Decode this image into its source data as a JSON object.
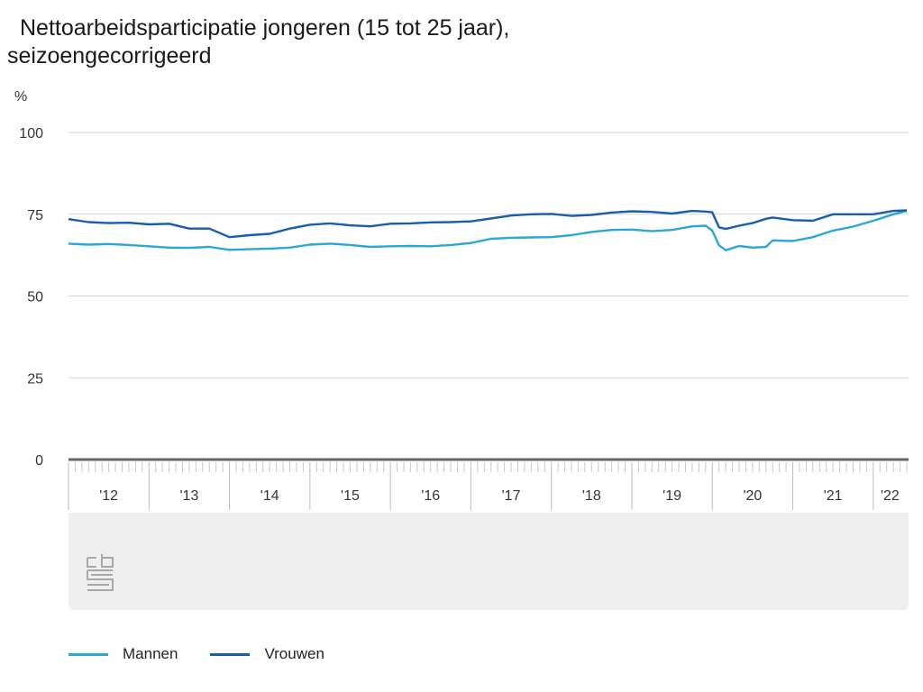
{
  "chart_data": {
    "type": "line",
    "title": "Nettoarbeidsparticipatie jongeren (15 tot 25 jaar), seizoengecorrigeerd",
    "ylabel": "%",
    "ylim": [
      0,
      100
    ],
    "yticks": [
      "0",
      "25",
      "50",
      "75",
      "100"
    ],
    "x_start": "2012-01",
    "x_end": "2022-06",
    "xticks": [
      "'12",
      "'13",
      "'14",
      "'15",
      "'16",
      "'17",
      "'18",
      "'19",
      "'20",
      "'21",
      "'22"
    ],
    "grid": true,
    "legend_position": "bottom-left",
    "series": [
      {
        "name": "Mannen",
        "color": "#29a8d6",
        "values": [
          {
            "x": "2012-01",
            "y": 66.0
          },
          {
            "x": "2012-04",
            "y": 65.7
          },
          {
            "x": "2012-07",
            "y": 65.9
          },
          {
            "x": "2012-10",
            "y": 65.6
          },
          {
            "x": "2013-01",
            "y": 65.2
          },
          {
            "x": "2013-04",
            "y": 64.8
          },
          {
            "x": "2013-07",
            "y": 64.7
          },
          {
            "x": "2013-10",
            "y": 65.0
          },
          {
            "x": "2014-01",
            "y": 64.1
          },
          {
            "x": "2014-04",
            "y": 64.3
          },
          {
            "x": "2014-07",
            "y": 64.5
          },
          {
            "x": "2014-10",
            "y": 64.8
          },
          {
            "x": "2015-01",
            "y": 65.7
          },
          {
            "x": "2015-04",
            "y": 66.0
          },
          {
            "x": "2015-07",
            "y": 65.6
          },
          {
            "x": "2015-10",
            "y": 65.0
          },
          {
            "x": "2016-01",
            "y": 65.2
          },
          {
            "x": "2016-04",
            "y": 65.3
          },
          {
            "x": "2016-07",
            "y": 65.2
          },
          {
            "x": "2016-10",
            "y": 65.6
          },
          {
            "x": "2017-01",
            "y": 66.2
          },
          {
            "x": "2017-04",
            "y": 67.5
          },
          {
            "x": "2017-07",
            "y": 67.8
          },
          {
            "x": "2017-10",
            "y": 67.9
          },
          {
            "x": "2018-01",
            "y": 68.0
          },
          {
            "x": "2018-04",
            "y": 68.6
          },
          {
            "x": "2018-07",
            "y": 69.6
          },
          {
            "x": "2018-10",
            "y": 70.2
          },
          {
            "x": "2019-01",
            "y": 70.3
          },
          {
            "x": "2019-04",
            "y": 69.8
          },
          {
            "x": "2019-07",
            "y": 70.2
          },
          {
            "x": "2019-10",
            "y": 71.3
          },
          {
            "x": "2019-12",
            "y": 71.5
          },
          {
            "x": "2020-01",
            "y": 70.0
          },
          {
            "x": "2020-02",
            "y": 65.5
          },
          {
            "x": "2020-03",
            "y": 64.0
          },
          {
            "x": "2020-05",
            "y": 65.3
          },
          {
            "x": "2020-07",
            "y": 64.8
          },
          {
            "x": "2020-09",
            "y": 65.0
          },
          {
            "x": "2020-10",
            "y": 67.0
          },
          {
            "x": "2021-01",
            "y": 66.8
          },
          {
            "x": "2021-04",
            "y": 68.0
          },
          {
            "x": "2021-07",
            "y": 70.0
          },
          {
            "x": "2021-10",
            "y": 71.2
          },
          {
            "x": "2022-01",
            "y": 73.0
          },
          {
            "x": "2022-04",
            "y": 75.0
          },
          {
            "x": "2022-06",
            "y": 76.0
          }
        ]
      },
      {
        "name": "Vrouwen",
        "color": "#1a5dab",
        "values": [
          {
            "x": "2012-01",
            "y": 73.5
          },
          {
            "x": "2012-04",
            "y": 72.6
          },
          {
            "x": "2012-07",
            "y": 72.3
          },
          {
            "x": "2012-10",
            "y": 72.4
          },
          {
            "x": "2013-01",
            "y": 71.9
          },
          {
            "x": "2013-04",
            "y": 72.1
          },
          {
            "x": "2013-07",
            "y": 70.6
          },
          {
            "x": "2013-10",
            "y": 70.6
          },
          {
            "x": "2014-01",
            "y": 68.0
          },
          {
            "x": "2014-04",
            "y": 68.6
          },
          {
            "x": "2014-07",
            "y": 69.0
          },
          {
            "x": "2014-10",
            "y": 70.6
          },
          {
            "x": "2015-01",
            "y": 71.8
          },
          {
            "x": "2015-04",
            "y": 72.2
          },
          {
            "x": "2015-07",
            "y": 71.6
          },
          {
            "x": "2015-10",
            "y": 71.3
          },
          {
            "x": "2016-01",
            "y": 72.1
          },
          {
            "x": "2016-04",
            "y": 72.2
          },
          {
            "x": "2016-07",
            "y": 72.5
          },
          {
            "x": "2016-10",
            "y": 72.6
          },
          {
            "x": "2017-01",
            "y": 72.8
          },
          {
            "x": "2017-04",
            "y": 73.7
          },
          {
            "x": "2017-07",
            "y": 74.6
          },
          {
            "x": "2017-10",
            "y": 75.0
          },
          {
            "x": "2018-01",
            "y": 75.1
          },
          {
            "x": "2018-04",
            "y": 74.5
          },
          {
            "x": "2018-07",
            "y": 74.8
          },
          {
            "x": "2018-10",
            "y": 75.5
          },
          {
            "x": "2019-01",
            "y": 75.9
          },
          {
            "x": "2019-04",
            "y": 75.7
          },
          {
            "x": "2019-07",
            "y": 75.2
          },
          {
            "x": "2019-10",
            "y": 76.0
          },
          {
            "x": "2019-12",
            "y": 75.8
          },
          {
            "x": "2020-01",
            "y": 75.6
          },
          {
            "x": "2020-02",
            "y": 71.0
          },
          {
            "x": "2020-03",
            "y": 70.5
          },
          {
            "x": "2020-05",
            "y": 71.5
          },
          {
            "x": "2020-07",
            "y": 72.3
          },
          {
            "x": "2020-09",
            "y": 73.6
          },
          {
            "x": "2020-10",
            "y": 74.0
          },
          {
            "x": "2021-01",
            "y": 73.2
          },
          {
            "x": "2021-04",
            "y": 73.0
          },
          {
            "x": "2021-07",
            "y": 75.0
          },
          {
            "x": "2021-10",
            "y": 75.0
          },
          {
            "x": "2022-01",
            "y": 75.0
          },
          {
            "x": "2022-04",
            "y": 76.0
          },
          {
            "x": "2022-06",
            "y": 76.2
          }
        ]
      }
    ]
  }
}
